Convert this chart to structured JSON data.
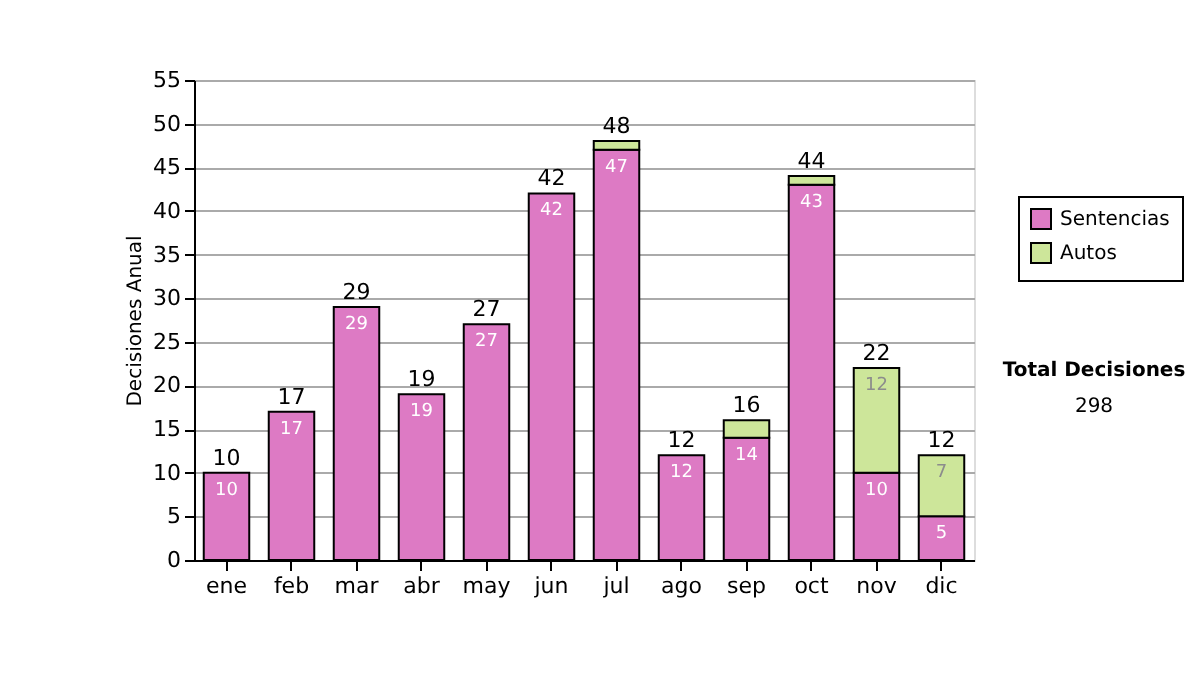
{
  "chart_data": {
    "type": "bar",
    "stacked": true,
    "ylabel": "Decisiones Anual",
    "categories": [
      "ene",
      "feb",
      "mar",
      "abr",
      "may",
      "jun",
      "jul",
      "ago",
      "sep",
      "oct",
      "nov",
      "dic"
    ],
    "series": [
      {
        "name": "Sentencias",
        "color": "#dd7ac4",
        "values": [
          10,
          17,
          29,
          19,
          27,
          42,
          47,
          12,
          14,
          43,
          10,
          5
        ],
        "value_labels": [
          "10",
          "17",
          "29",
          "19",
          "27",
          "42",
          "47",
          "12",
          "14",
          "43",
          "10",
          "5"
        ]
      },
      {
        "name": "Autos",
        "color": "#cde69a",
        "values": [
          null,
          null,
          null,
          null,
          null,
          null,
          1,
          null,
          2,
          1,
          12,
          7
        ],
        "value_labels": [
          null,
          null,
          null,
          null,
          null,
          null,
          null,
          null,
          null,
          null,
          "12",
          "7"
        ]
      }
    ],
    "totals": [
      "10",
      "17",
      "29",
      "19",
      "27",
      "42",
      "48",
      "12",
      "16",
      "44",
      "22",
      "12"
    ],
    "ylim": [
      0,
      55
    ],
    "yticks": [
      0,
      5,
      10,
      15,
      20,
      25,
      30,
      35,
      40,
      45,
      50,
      55
    ],
    "grid": "y",
    "legend": "right",
    "annotations": [
      "Total Decisiones",
      "298"
    ]
  }
}
